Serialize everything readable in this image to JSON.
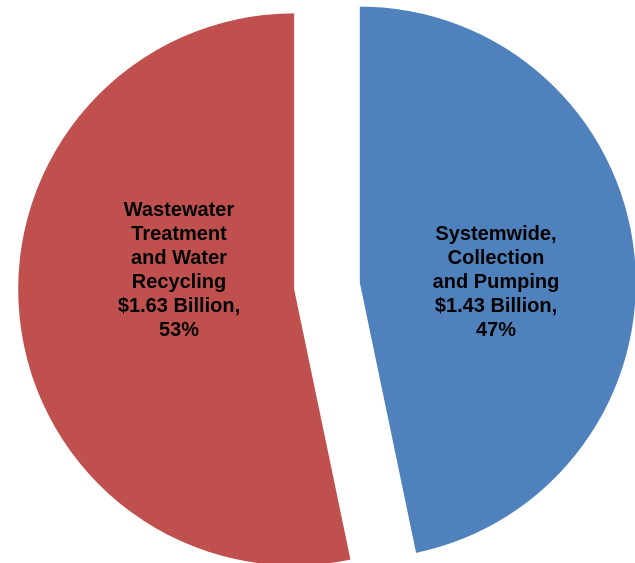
{
  "chart_data": {
    "type": "pie",
    "title": "",
    "slices": [
      {
        "label_lines": [
          "Systemwide,",
          "Collection",
          "and Pumping",
          "$1.43 Billion,",
          "47%"
        ],
        "category": "Systemwide, Collection and Pumping",
        "value": 1.43,
        "percent": 47,
        "color": "#4f81bd"
      },
      {
        "label_lines": [
          "Wastewater",
          "Treatment",
          "and Water",
          "Recycling",
          "$1.63 Billion,",
          "53%"
        ],
        "category": "Wastewater Treatment and Water Recycling",
        "value": 1.63,
        "percent": 53,
        "color": "#c0504d"
      }
    ],
    "legend": "none",
    "exploded": true
  }
}
